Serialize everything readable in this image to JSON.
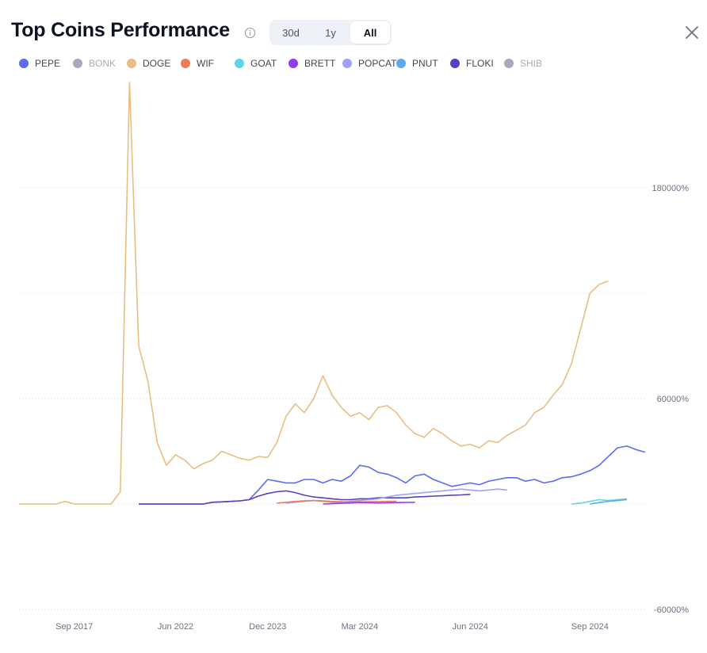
{
  "header": {
    "title": "Top Coins Performance",
    "ranges": [
      {
        "label": "30d",
        "active": false
      },
      {
        "label": "1y",
        "active": false
      },
      {
        "label": "All",
        "active": true
      }
    ]
  },
  "legend": [
    {
      "name": "PEPE",
      "color": "#5b6cf0",
      "enabled": true
    },
    {
      "name": "BONK",
      "color": "#a3aab8",
      "enabled": false
    },
    {
      "name": "DOGE",
      "color": "#e8be82",
      "enabled": true
    },
    {
      "name": "WIF",
      "color": "#ee7b5a",
      "enabled": true
    },
    {
      "name": "GOAT",
      "color": "#5fd3e8",
      "enabled": true
    },
    {
      "name": "BRETT",
      "color": "#8b3ff0",
      "enabled": true
    },
    {
      "name": "POPCAT",
      "color": "#9ca3f4",
      "enabled": true
    },
    {
      "name": "PNUT",
      "color": "#5ea8f0",
      "enabled": true
    },
    {
      "name": "FLOKI",
      "color": "#5243c4",
      "enabled": true
    },
    {
      "name": "SHIB",
      "color": "#a3aab8",
      "enabled": false
    }
  ],
  "chart_data": {
    "type": "line",
    "title": "Top Coins Performance",
    "xlabel": "",
    "ylabel": "",
    "x_tick_labels": [
      "Sep 2017",
      "Jun 2022",
      "Dec 2023",
      "Mar 2024",
      "Jun 2024",
      "Sep 2024"
    ],
    "x_tick_index": [
      6,
      17,
      27,
      37,
      49,
      62
    ],
    "y_ticks": [
      180000,
      60000,
      -60000
    ],
    "y_tick_labels": [
      "180000%",
      "60000%",
      "-60000%"
    ],
    "ylim": [
      -60000,
      240000
    ],
    "grid": true,
    "series": [
      {
        "name": "DOGE",
        "color": "#e8be82",
        "values": [
          0,
          0,
          0,
          0,
          0,
          1500,
          0,
          0,
          0,
          0,
          0,
          7000,
          240000,
          90000,
          70000,
          35000,
          22000,
          28000,
          25000,
          20000,
          23000,
          25000,
          30000,
          28000,
          26000,
          25000,
          27000,
          26500,
          35000,
          50000,
          57000,
          52000,
          60000,
          73000,
          62000,
          55000,
          50000,
          52000,
          48000,
          55000,
          56000,
          52000,
          45000,
          40000,
          38000,
          43000,
          40000,
          36000,
          33000,
          34000,
          32000,
          36000,
          35000,
          39000,
          42000,
          45000,
          52000,
          55000,
          62000,
          68000,
          80000,
          100000,
          120000,
          125000,
          127000
        ]
      },
      {
        "name": "PEPE",
        "color": "#5b6cf0",
        "values": [
          null,
          null,
          null,
          null,
          null,
          null,
          null,
          null,
          null,
          null,
          null,
          null,
          null,
          0,
          0,
          0,
          0,
          0,
          0,
          0,
          0,
          1000,
          1200,
          1500,
          1800,
          2500,
          8000,
          14000,
          13000,
          12000,
          12000,
          14000,
          14000,
          12000,
          14000,
          13000,
          16000,
          22000,
          21000,
          18000,
          17000,
          15000,
          12000,
          16000,
          17000,
          14000,
          12000,
          10000,
          11000,
          12000,
          11000,
          13000,
          14000,
          15000,
          15000,
          13000,
          14000,
          12000,
          13000,
          15000,
          15500,
          17000,
          19000,
          22000,
          27000,
          32000,
          33000,
          31000,
          29500
        ]
      },
      {
        "name": "FLOKI",
        "color": "#5243c4",
        "values": [
          null,
          null,
          null,
          null,
          null,
          null,
          null,
          null,
          null,
          null,
          null,
          null,
          null,
          0,
          0,
          0,
          0,
          0,
          0,
          0,
          0,
          1000,
          1200,
          1500,
          1800,
          2500,
          4500,
          6000,
          7000,
          7500,
          6500,
          5000,
          4000,
          3500,
          3000,
          2500,
          2500,
          3000,
          3000,
          3500,
          3500,
          3500,
          3500,
          4000,
          4200,
          4500,
          4700,
          5000,
          5200,
          5500
        ]
      },
      {
        "name": "POPCAT",
        "color": "#9ca3f4",
        "values": [
          null,
          null,
          null,
          null,
          null,
          null,
          null,
          null,
          null,
          null,
          null,
          null,
          null,
          null,
          null,
          null,
          null,
          null,
          null,
          null,
          null,
          null,
          null,
          null,
          null,
          null,
          null,
          null,
          null,
          500,
          1000,
          1500,
          2000,
          1500,
          1000,
          1000,
          1500,
          2000,
          2500,
          3000,
          4000,
          5000,
          5500,
          6000,
          6500,
          7000,
          7500,
          8000,
          8500,
          8000,
          7500,
          8000,
          8500,
          8000
        ]
      },
      {
        "name": "WIF",
        "color": "#ee7b5a",
        "values": [
          null,
          null,
          null,
          null,
          null,
          null,
          null,
          null,
          null,
          null,
          null,
          null,
          null,
          null,
          null,
          null,
          null,
          null,
          null,
          null,
          null,
          null,
          null,
          null,
          null,
          null,
          null,
          null,
          500,
          1000,
          1500,
          1800,
          2000,
          1800,
          1500,
          1300,
          1200,
          1200,
          1300,
          1400,
          1500,
          1600
        ]
      },
      {
        "name": "BRETT",
        "color": "#8b3ff0",
        "values": [
          null,
          null,
          null,
          null,
          null,
          null,
          null,
          null,
          null,
          null,
          null,
          null,
          null,
          null,
          null,
          null,
          null,
          null,
          null,
          null,
          null,
          null,
          null,
          null,
          null,
          null,
          null,
          null,
          null,
          null,
          null,
          null,
          null,
          0,
          200,
          400,
          600,
          800,
          700,
          600,
          700,
          800,
          900,
          1000
        ]
      },
      {
        "name": "GOAT",
        "color": "#5fd3e8",
        "values": [
          null,
          null,
          null,
          null,
          null,
          null,
          null,
          null,
          null,
          null,
          null,
          null,
          null,
          null,
          null,
          null,
          null,
          null,
          null,
          null,
          null,
          null,
          null,
          null,
          null,
          null,
          null,
          null,
          null,
          null,
          null,
          null,
          null,
          null,
          null,
          null,
          null,
          null,
          null,
          null,
          null,
          null,
          null,
          null,
          null,
          null,
          null,
          null,
          null,
          null,
          null,
          null,
          null,
          null,
          null,
          null,
          null,
          null,
          null,
          null,
          0,
          500,
          1500,
          2500,
          2000,
          2500,
          3000
        ]
      },
      {
        "name": "PNUT",
        "color": "#5ea8f0",
        "values": [
          null,
          null,
          null,
          null,
          null,
          null,
          null,
          null,
          null,
          null,
          null,
          null,
          null,
          null,
          null,
          null,
          null,
          null,
          null,
          null,
          null,
          null,
          null,
          null,
          null,
          null,
          null,
          null,
          null,
          null,
          null,
          null,
          null,
          null,
          null,
          null,
          null,
          null,
          null,
          null,
          null,
          null,
          null,
          null,
          null,
          null,
          null,
          null,
          null,
          null,
          null,
          null,
          null,
          null,
          null,
          null,
          null,
          null,
          null,
          null,
          null,
          null,
          0,
          800,
          1500,
          2000,
          2500
        ]
      }
    ]
  }
}
